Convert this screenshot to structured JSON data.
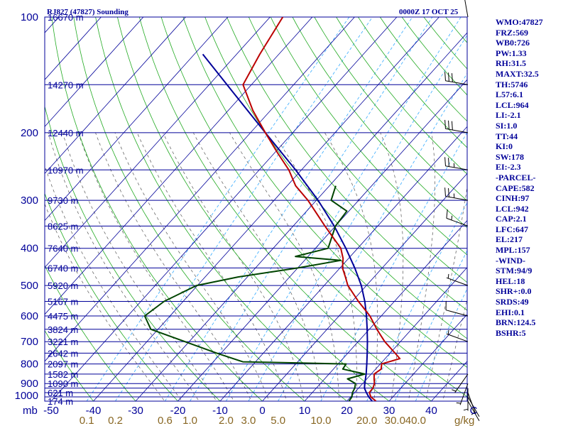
{
  "header": {
    "station": "RJ827 (47827) Sounding",
    "time": "0000Z 17 OCT 25"
  },
  "stats": [
    "WMO:47827",
    "FRZ:569",
    "WB0:726",
    "PW:1.33",
    "RH:31.5",
    "MAXT:32.5",
    "TH:5746",
    "L57:6.1",
    "LCL:964",
    "LI:-2.1",
    "SI:1.0",
    "TT:44",
    "KI:0",
    "SW:178",
    "EI:-2.3",
    "-PARCEL-",
    "CAPE:582",
    "CINH:97",
    "LCL:942",
    "CAP:2.1",
    "LFC:647",
    "EL:217",
    "MPL:157",
    "-WIND-",
    "STM:94/9",
    "HEL:18",
    "SHR+:0.0",
    "SRDS:49",
    "EHI:0.1",
    "BRN:124.5",
    "BSHR:5"
  ],
  "colors": {
    "isobar": "#000099",
    "isotherm": "#000099",
    "dry_adiabat": "#22aa22",
    "moist_adiabat": "#555555",
    "mixing_ratio": "#33aaff",
    "temperature": "#bb0000",
    "dewpoint": "#004400",
    "parcel": "#000099",
    "wind": "#000000"
  },
  "chart_data": {
    "type": "line",
    "title": "RJ827 (47827) Sounding",
    "pressure_unit": "mb",
    "temperature_unit": "C",
    "mixing_ratio_unit": "g/kg",
    "pressure_range": [
      1000,
      100
    ],
    "temperature_range": [
      -50,
      50
    ],
    "pressure_labels": [
      100,
      200,
      300,
      400,
      500,
      600,
      700,
      800,
      900,
      1000
    ],
    "isobars": [
      100,
      150,
      200,
      250,
      300,
      350,
      400,
      450,
      500,
      550,
      600,
      650,
      700,
      750,
      800,
      850,
      900,
      925,
      950,
      975,
      1000
    ],
    "height_labels": [
      {
        "p": 100,
        "label": "16670 m"
      },
      {
        "p": 150,
        "label": "14270 m"
      },
      {
        "p": 200,
        "label": "12440 m"
      },
      {
        "p": 250,
        "label": "10970 m"
      },
      {
        "p": 300,
        "label": "9730 m"
      },
      {
        "p": 350,
        "label": "8625 m"
      },
      {
        "p": 400,
        "label": "7640 m"
      },
      {
        "p": 450,
        "label": "6740 m"
      },
      {
        "p": 500,
        "label": "5920 m"
      },
      {
        "p": 550,
        "label": "5167 m"
      },
      {
        "p": 600,
        "label": "4475 m"
      },
      {
        "p": 650,
        "label": "3824 m"
      },
      {
        "p": 700,
        "label": "3221 m"
      },
      {
        "p": 750,
        "label": "2642 m"
      },
      {
        "p": 800,
        "label": "2097 m"
      },
      {
        "p": 850,
        "label": "1582 m"
      },
      {
        "p": 900,
        "label": "1090 m"
      },
      {
        "p": 950,
        "label": "621 m"
      },
      {
        "p": 1000,
        "label": "174 m"
      }
    ],
    "temperature_ticks": [
      {
        "t": -50,
        "label": "-50"
      },
      {
        "t": -40,
        "label": "-40"
      },
      {
        "t": -30,
        "label": "-30"
      },
      {
        "t": -20,
        "label": "-20"
      },
      {
        "t": -10,
        "label": "-10"
      },
      {
        "t": 0,
        "label": "0"
      },
      {
        "t": 10,
        "label": "10"
      },
      {
        "t": 20,
        "label": "20"
      },
      {
        "t": 30,
        "label": "30"
      },
      {
        "t": 40,
        "label": "40"
      },
      {
        "t": 50,
        "label": "C"
      }
    ],
    "corner_label": "mb",
    "mixing_ratio_labels": [
      {
        "w": 0.1,
        "label": "0.1"
      },
      {
        "w": 0.2,
        "label": "0.2"
      },
      {
        "w": 0.6,
        "label": "0.6"
      },
      {
        "w": 1.0,
        "label": "1.0"
      },
      {
        "w": 2.0,
        "label": "2.0"
      },
      {
        "w": 3.0,
        "label": "3.0"
      },
      {
        "w": 5.0,
        "label": "5.0"
      },
      {
        "w": 10.0,
        "label": "10.0"
      },
      {
        "w": 20.0,
        "label": "20.0"
      },
      {
        "w": 30.0,
        "label": "30.0"
      },
      {
        "w": 40.0,
        "label": "40.0"
      }
    ],
    "mixing_ratio_unit_label": "g/kg",
    "series": [
      {
        "name": "Temperature",
        "color_key": "temperature",
        "points": [
          [
            1000,
            26.9
          ],
          [
            975,
            24.8
          ],
          [
            950,
            23.5
          ],
          [
            925,
            23.4
          ],
          [
            900,
            22.8
          ],
          [
            875,
            21.7
          ],
          [
            850,
            20.7
          ],
          [
            825,
            21.3
          ],
          [
            800,
            20.3
          ],
          [
            775,
            23.5
          ],
          [
            750,
            21.2
          ],
          [
            700,
            16.3
          ],
          [
            650,
            11.8
          ],
          [
            600,
            7.3
          ],
          [
            550,
            1.5
          ],
          [
            500,
            -4.4
          ],
          [
            475,
            -6.8
          ],
          [
            450,
            -9.4
          ],
          [
            425,
            -11.3
          ],
          [
            400,
            -14.0
          ],
          [
            350,
            -22.5
          ],
          [
            300,
            -32.0
          ],
          [
            275,
            -38.0
          ],
          [
            250,
            -43.0
          ],
          [
            225,
            -49.5
          ],
          [
            200,
            -56.5
          ],
          [
            175,
            -64.2
          ],
          [
            150,
            -72.0
          ],
          [
            125,
            -74.5
          ],
          [
            100,
            -77.0
          ]
        ]
      },
      {
        "name": "Dewpoint",
        "color_key": "dewpoint",
        "points": [
          [
            1000,
            20.5
          ],
          [
            975,
            20.3
          ],
          [
            950,
            19.5
          ],
          [
            925,
            19.1
          ],
          [
            900,
            18.3
          ],
          [
            875,
            15.4
          ],
          [
            850,
            18.5
          ],
          [
            825,
            12.2
          ],
          [
            800,
            11.9
          ],
          [
            790,
            -13.0
          ],
          [
            750,
            -21.0
          ],
          [
            700,
            -31.0
          ],
          [
            650,
            -41.7
          ],
          [
            600,
            -46.0
          ],
          [
            550,
            -44.5
          ],
          [
            500,
            -40.2
          ],
          [
            475,
            -32.2
          ],
          [
            450,
            -20.0
          ],
          [
            430,
            -11.4
          ],
          [
            420,
            -23.0
          ],
          [
            400,
            -17.0
          ],
          [
            350,
            -20.0
          ],
          [
            320,
            -20.5
          ],
          [
            300,
            -26.5
          ],
          [
            275,
            -28.5
          ]
        ]
      },
      {
        "name": "Parcel",
        "color_key": "parcel",
        "points": [
          [
            1000,
            26.0
          ],
          [
            975,
            24.3
          ],
          [
            950,
            22.8
          ],
          [
            925,
            21.4
          ],
          [
            900,
            20.5
          ],
          [
            850,
            18.8
          ],
          [
            800,
            16.8
          ],
          [
            750,
            14.6
          ],
          [
            700,
            12.2
          ],
          [
            650,
            9.5
          ],
          [
            600,
            6.5
          ],
          [
            550,
            3.0
          ],
          [
            500,
            -1.2
          ],
          [
            450,
            -6.5
          ],
          [
            400,
            -12.8
          ],
          [
            350,
            -20.3
          ],
          [
            300,
            -29.6
          ],
          [
            250,
            -41.4
          ],
          [
            200,
            -56.5
          ],
          [
            150,
            -75.8
          ],
          [
            125,
            -88.0
          ]
        ]
      }
    ],
    "wind_barbs": [
      {
        "p": 1000,
        "dir": 150,
        "kt": 3
      },
      {
        "p": 975,
        "dir": 150,
        "kt": 4
      },
      {
        "p": 950,
        "dir": 160,
        "kt": 5
      },
      {
        "p": 925,
        "dir": 180,
        "kt": 6
      },
      {
        "p": 900,
        "dir": 200,
        "kt": 6
      },
      {
        "p": 850,
        "dir": 215,
        "kt": 8
      },
      {
        "p": 700,
        "dir": 290,
        "kt": 5
      },
      {
        "p": 600,
        "dir": 285,
        "kt": 10
      },
      {
        "p": 500,
        "dir": 290,
        "kt": 5
      },
      {
        "p": 350,
        "dir": 290,
        "kt": 15
      },
      {
        "p": 300,
        "dir": 280,
        "kt": 25
      },
      {
        "p": 250,
        "dir": 280,
        "kt": 25
      },
      {
        "p": 200,
        "dir": 280,
        "kt": 30
      },
      {
        "p": 150,
        "dir": 280,
        "kt": 30
      },
      {
        "p": 100,
        "dir": 350,
        "kt": 5
      }
    ]
  }
}
